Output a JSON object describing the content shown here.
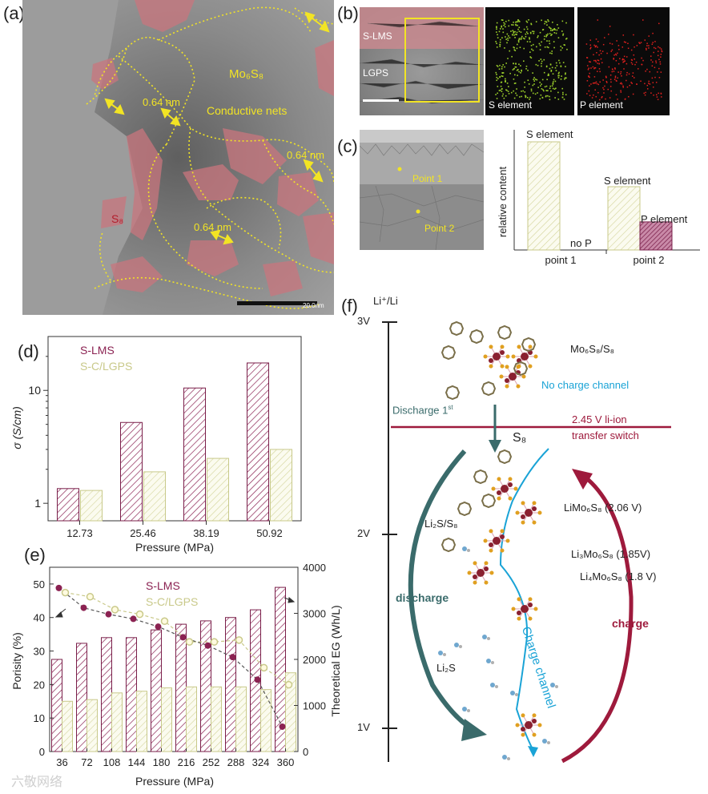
{
  "panels": {
    "a": {
      "label": "(a)",
      "annotations": [
        "Mo₆S₈",
        "0.64 nm",
        "Conductive nets",
        "0.64 nm",
        "0.64 nm",
        "S₈"
      ],
      "scalebar": "20.0nm"
    },
    "b": {
      "label": "(b)",
      "layer_top": "S-LMS",
      "layer_bottom": "LGPS",
      "map_s": "S element",
      "map_p": "P element"
    },
    "c": {
      "label": "(c)",
      "point1": "Point 1",
      "point2": "Point 2",
      "ylabel": "relative content",
      "categories": [
        "point 1",
        "point 2"
      ],
      "bar_labels": [
        "S element",
        "no P",
        "S element",
        "P element"
      ]
    },
    "d": {
      "label": "(d)"
    },
    "e": {
      "label": "(e)"
    },
    "f": {
      "label": "(f)",
      "axis_title": "Li⁺/Li",
      "ticks": [
        "3V",
        "2V",
        "1V"
      ],
      "top_species": "Mo₆S₈/S₈",
      "no_channel": "No charge channel",
      "discharge_first": "Discharge 1",
      "discharge_sup": "st",
      "switch_line1": "2.45 V  li-ion",
      "switch_line2": "transfer switch",
      "s8": "S₈",
      "li2s_s8": "Li₂S/S₈",
      "li2s": "Li₂S",
      "discharge": "discharge",
      "charge": "charge",
      "charge_channel": "Charge channel",
      "species": [
        "LiMo₆S₈  (2.06 V)",
        "Li₃Mo₆S₈   (1.85V)",
        "Li₄Mo₆S₈   (1.8 V)"
      ]
    }
  },
  "watermark": "六敬网络",
  "chart_data": [
    {
      "id": "d",
      "type": "bar",
      "categories": [
        "12.73",
        "25.46",
        "38.19",
        "50.92"
      ],
      "series": [
        {
          "name": "S-LMS",
          "values": [
            1.35,
            5.2,
            10.5,
            17.5
          ]
        },
        {
          "name": "S-C/LGPS",
          "values": [
            1.3,
            1.9,
            2.5,
            3.0
          ]
        }
      ],
      "xlabel": "Pressure (MPa)",
      "ylabel": "σ (S/cm)",
      "yscale": "log",
      "ylim": [
        0.7,
        30
      ],
      "ytick_labels": [
        "1",
        "10"
      ],
      "legend": "top-left"
    },
    {
      "id": "e",
      "type": "bar",
      "categories": [
        "36",
        "72",
        "108",
        "144",
        "180",
        "216",
        "252",
        "288",
        "324",
        "360"
      ],
      "series": [
        {
          "name": "S-LMS",
          "kind": "bar",
          "axis": "left",
          "values": [
            27.5,
            32.3,
            34,
            34,
            36.3,
            38,
            39,
            40,
            42.3,
            49
          ]
        },
        {
          "name": "S-C/LGPS",
          "kind": "bar",
          "axis": "left",
          "values": [
            15,
            15.5,
            17.5,
            18,
            19,
            19.3,
            19.3,
            19.3,
            18.5,
            23.5
          ]
        },
        {
          "name": "S-LMS EG",
          "kind": "line",
          "axis": "right",
          "values": [
            3550,
            3120,
            2980,
            2880,
            2710,
            2480,
            2300,
            2050,
            1560,
            540
          ]
        },
        {
          "name": "S-C/LGPS EG",
          "kind": "line",
          "axis": "right",
          "values": [
            3450,
            3360,
            3080,
            2980,
            2830,
            2380,
            2380,
            2420,
            1820,
            1450
          ]
        }
      ],
      "xlabel": "Pressure (MPa)",
      "ylabel": "Porisity (%)",
      "y2label": "Theoretical EG (Wh/L)",
      "ylim": [
        0,
        55
      ],
      "y2lim": [
        0,
        4000
      ],
      "yticks": [
        0,
        10,
        20,
        30,
        40,
        50
      ],
      "y2ticks": [
        0,
        1000,
        2000,
        3000,
        4000
      ],
      "legend": [
        "S-LMS",
        "S-C/LGPS"
      ]
    },
    {
      "id": "c",
      "type": "bar",
      "categories": [
        "point 1",
        "point 2"
      ],
      "series": [
        {
          "name": "S element",
          "values": [
            1.0,
            0.45
          ]
        },
        {
          "name": "P element",
          "values": [
            0,
            0.2
          ]
        }
      ]
    }
  ],
  "colors": {
    "slms": "#8b2252",
    "sclgps": "#c9c98a",
    "teal": "#3a6b6b",
    "cyan": "#1aa3d6",
    "darkred": "#9e1a3c"
  }
}
